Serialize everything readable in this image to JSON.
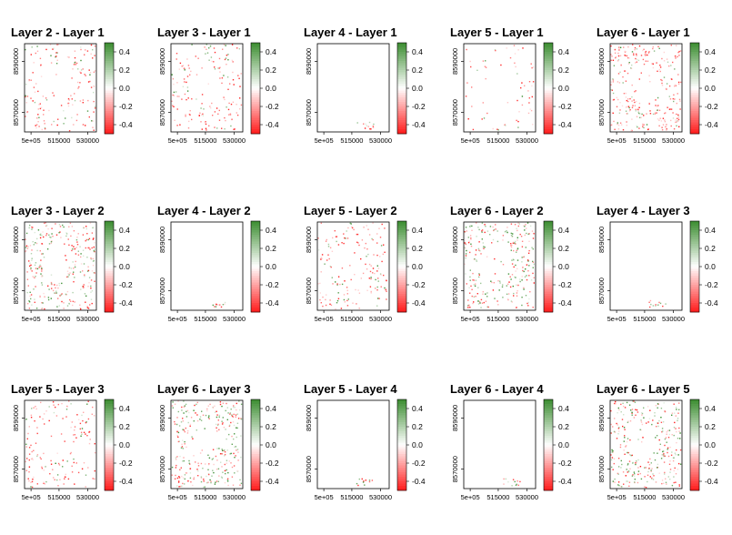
{
  "figure": "layer difference maps",
  "colors": {
    "positive": "#3a8c2f",
    "zero": "#ffffff",
    "negative": "#ff1a1a",
    "frame": "#000000"
  },
  "chart_data": [
    {
      "type": "heatmap",
      "title": "Layer 2 - Layer 1",
      "xticks": [
        "5e+05",
        "515000",
        "530000"
      ],
      "yticks": [
        "8570000",
        "8590000"
      ],
      "legend_ticks": [
        "0.4",
        "0.2",
        "0.0",
        "-0.2",
        "-0.4"
      ],
      "value_range": [
        -0.5,
        0.5
      ],
      "coverage": "medium",
      "dominant_sign": "negative"
    },
    {
      "type": "heatmap",
      "title": "Layer 3 - Layer 1",
      "xticks": [
        "5e+05",
        "515000",
        "530000"
      ],
      "yticks": [
        "8570000",
        "8590000"
      ],
      "legend_ticks": [
        "0.4",
        "0.2",
        "0.0",
        "-0.2",
        "-0.4"
      ],
      "value_range": [
        -0.5,
        0.5
      ],
      "coverage": "medium",
      "dominant_sign": "negative"
    },
    {
      "type": "heatmap",
      "title": "Layer 4 - Layer 1",
      "xticks": [
        "5e+05",
        "515000",
        "530000"
      ],
      "yticks": [
        "8570000",
        "8590000"
      ],
      "legend_ticks": [
        "0.4",
        "0.2",
        "0.0",
        "-0.2",
        "-0.4"
      ],
      "value_range": [
        -0.5,
        0.5
      ],
      "coverage": "sparse",
      "dominant_sign": "mixed"
    },
    {
      "type": "heatmap",
      "title": "Layer 5 - Layer 1",
      "xticks": [
        "5e+05",
        "515000",
        "530000"
      ],
      "yticks": [
        "8570000",
        "8590000"
      ],
      "legend_ticks": [
        "0.4",
        "0.2",
        "0.0",
        "-0.2",
        "-0.4"
      ],
      "value_range": [
        -0.5,
        0.5
      ],
      "coverage": "low",
      "dominant_sign": "negative"
    },
    {
      "type": "heatmap",
      "title": "Layer 6 - Layer 1",
      "xticks": [
        "5e+05",
        "515000",
        "530000"
      ],
      "yticks": [
        "8570000",
        "8590000"
      ],
      "legend_ticks": [
        "0.4",
        "0.2",
        "0.0",
        "-0.2",
        "-0.4"
      ],
      "value_range": [
        -0.5,
        0.5
      ],
      "coverage": "high",
      "dominant_sign": "negative"
    },
    {
      "type": "heatmap",
      "title": "Layer 3 - Layer 2",
      "xticks": [
        "5e+05",
        "515000",
        "530000"
      ],
      "yticks": [
        "8570000",
        "8590000"
      ],
      "legend_ticks": [
        "0.4",
        "0.2",
        "0.0",
        "-0.2",
        "-0.4"
      ],
      "value_range": [
        -0.5,
        0.5
      ],
      "coverage": "high",
      "dominant_sign": "mixed"
    },
    {
      "type": "heatmap",
      "title": "Layer 4 - Layer 2",
      "xticks": [
        "5e+05",
        "515000",
        "530000"
      ],
      "yticks": [
        "8570000",
        "8590000"
      ],
      "legend_ticks": [
        "0.4",
        "0.2",
        "0.0",
        "-0.2",
        "-0.4"
      ],
      "value_range": [
        -0.5,
        0.5
      ],
      "coverage": "sparse",
      "dominant_sign": "mixed"
    },
    {
      "type": "heatmap",
      "title": "Layer 5 - Layer 2",
      "xticks": [
        "5e+05",
        "515000",
        "530000"
      ],
      "yticks": [
        "8570000",
        "8590000"
      ],
      "legend_ticks": [
        "0.4",
        "0.2",
        "0.0",
        "-0.2",
        "-0.4"
      ],
      "value_range": [
        -0.5,
        0.5
      ],
      "coverage": "medium",
      "dominant_sign": "negative"
    },
    {
      "type": "heatmap",
      "title": "Layer 6 - Layer 2",
      "xticks": [
        "5e+05",
        "515000",
        "530000"
      ],
      "yticks": [
        "8570000",
        "8590000"
      ],
      "legend_ticks": [
        "0.4",
        "0.2",
        "0.0",
        "-0.2",
        "-0.4"
      ],
      "value_range": [
        -0.5,
        0.5
      ],
      "coverage": "high",
      "dominant_sign": "mixed"
    },
    {
      "type": "heatmap",
      "title": "Layer 4 - Layer 3",
      "xticks": [
        "5e+05",
        "515000",
        "530000"
      ],
      "yticks": [
        "8570000",
        "8590000"
      ],
      "legend_ticks": [
        "0.4",
        "0.2",
        "0.0",
        "-0.2",
        "-0.4"
      ],
      "value_range": [
        -0.5,
        0.5
      ],
      "coverage": "sparse",
      "dominant_sign": "mixed"
    },
    {
      "type": "heatmap",
      "title": "Layer 5 - Layer 3",
      "xticks": [
        "5e+05",
        "515000",
        "530000"
      ],
      "yticks": [
        "8570000",
        "8590000"
      ],
      "legend_ticks": [
        "0.4",
        "0.2",
        "0.0",
        "-0.2",
        "-0.4"
      ],
      "value_range": [
        -0.5,
        0.5
      ],
      "coverage": "medium",
      "dominant_sign": "negative"
    },
    {
      "type": "heatmap",
      "title": "Layer 6 - Layer 3",
      "xticks": [
        "5e+05",
        "515000",
        "530000"
      ],
      "yticks": [
        "8570000",
        "8590000"
      ],
      "legend_ticks": [
        "0.4",
        "0.2",
        "0.0",
        "-0.2",
        "-0.4"
      ],
      "value_range": [
        -0.5,
        0.5
      ],
      "coverage": "high",
      "dominant_sign": "mixed"
    },
    {
      "type": "heatmap",
      "title": "Layer 5 - Layer 4",
      "xticks": [
        "5e+05",
        "515000",
        "530000"
      ],
      "yticks": [
        "8570000",
        "8590000"
      ],
      "legend_ticks": [
        "0.4",
        "0.2",
        "0.0",
        "-0.2",
        "-0.4"
      ],
      "value_range": [
        -0.5,
        0.5
      ],
      "coverage": "sparse",
      "dominant_sign": "mixed"
    },
    {
      "type": "heatmap",
      "title": "Layer 6 - Layer 4",
      "xticks": [
        "5e+05",
        "515000",
        "530000"
      ],
      "yticks": [
        "8570000",
        "8590000"
      ],
      "legend_ticks": [
        "0.4",
        "0.2",
        "0.0",
        "-0.2",
        "-0.4"
      ],
      "value_range": [
        -0.5,
        0.5
      ],
      "coverage": "sparse",
      "dominant_sign": "mixed"
    },
    {
      "type": "heatmap",
      "title": "Layer 6 - Layer 5",
      "xticks": [
        "5e+05",
        "515000",
        "530000"
      ],
      "yticks": [
        "8570000",
        "8590000"
      ],
      "legend_ticks": [
        "0.4",
        "0.2",
        "0.0",
        "-0.2",
        "-0.4"
      ],
      "value_range": [
        -0.5,
        0.5
      ],
      "coverage": "high",
      "dominant_sign": "mixed"
    }
  ]
}
